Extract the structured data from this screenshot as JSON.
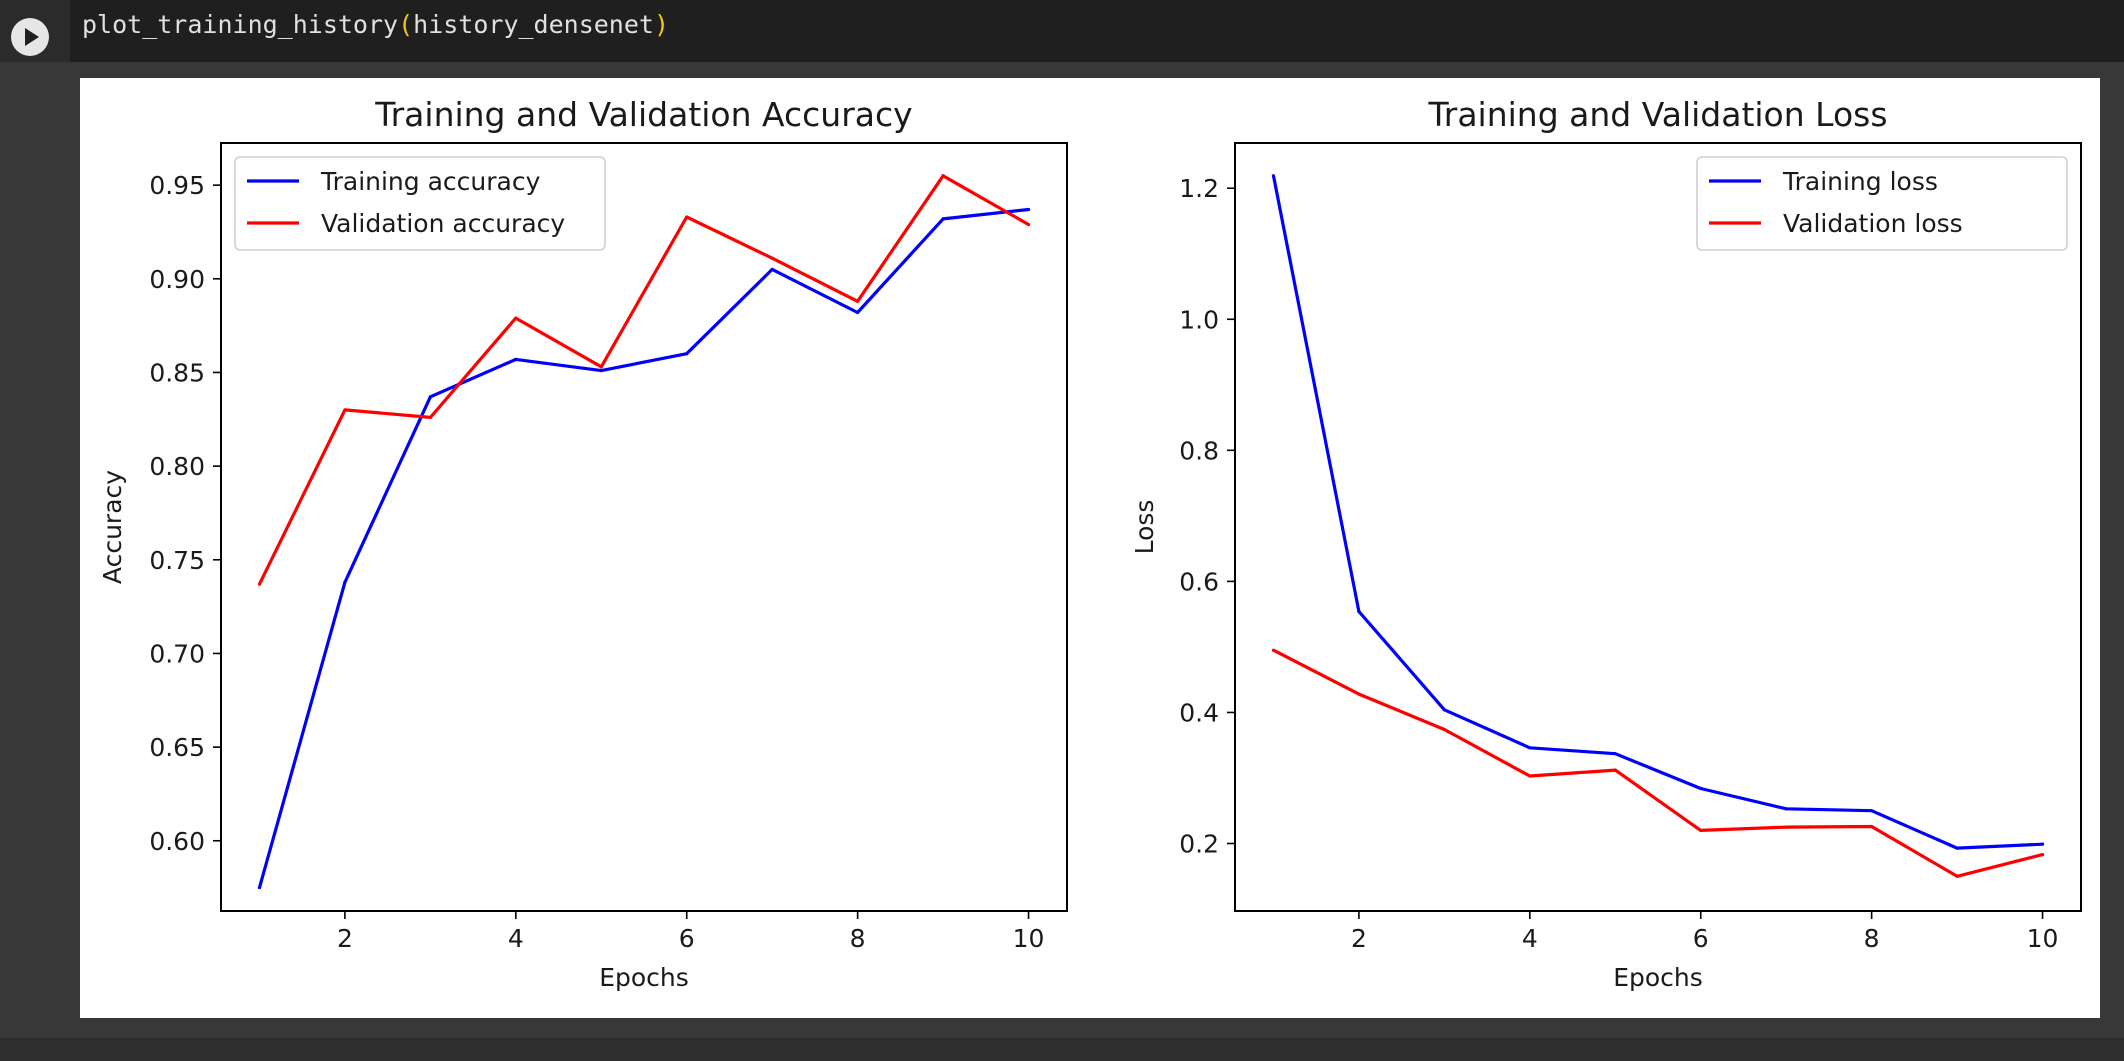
{
  "cell": {
    "code_function": "plot_training_history",
    "code_open": "(",
    "code_arg": "history_densenet",
    "code_close": ")",
    "run_icon": "play-circle-icon"
  },
  "colors": {
    "training": "#0000ff",
    "validation": "#ff0000",
    "editor_bg": "#1f1f1f",
    "paren": "#f0c814"
  },
  "chart_data": [
    {
      "type": "line",
      "title": "Training and Validation Accuracy",
      "xlabel": "Epochs",
      "ylabel": "Accuracy",
      "x": [
        1,
        2,
        3,
        4,
        5,
        6,
        7,
        8,
        9,
        10
      ],
      "xticks": [
        2,
        4,
        6,
        8,
        10
      ],
      "xlim": [
        0.55,
        10.45
      ],
      "yticks": [
        0.6,
        0.65,
        0.7,
        0.75,
        0.8,
        0.85,
        0.9,
        0.95
      ],
      "ylim": [
        0.5625,
        0.9725
      ],
      "legend_position": "upper left",
      "grid": false,
      "series": [
        {
          "name": "Training accuracy",
          "color_key": "training",
          "values": [
            0.575,
            0.738,
            0.837,
            0.857,
            0.851,
            0.86,
            0.905,
            0.882,
            0.932,
            0.937
          ]
        },
        {
          "name": "Validation accuracy",
          "color_key": "validation",
          "values": [
            0.737,
            0.83,
            0.826,
            0.879,
            0.853,
            0.933,
            0.911,
            0.888,
            0.955,
            0.929
          ]
        }
      ]
    },
    {
      "type": "line",
      "title": "Training and Validation Loss",
      "xlabel": "Epochs",
      "ylabel": "Loss",
      "x": [
        1,
        2,
        3,
        4,
        5,
        6,
        7,
        8,
        9,
        10
      ],
      "xticks": [
        2,
        4,
        6,
        8,
        10
      ],
      "xlim": [
        0.55,
        10.45
      ],
      "yticks": [
        0.2,
        0.4,
        0.6,
        0.8,
        1.0,
        1.2
      ],
      "ylim": [
        0.097,
        1.269
      ],
      "legend_position": "upper right",
      "grid": false,
      "series": [
        {
          "name": "Training loss",
          "color_key": "training",
          "values": [
            1.219,
            0.554,
            0.404,
            0.346,
            0.337,
            0.284,
            0.253,
            0.25,
            0.193,
            0.199
          ]
        },
        {
          "name": "Validation loss",
          "color_key": "validation",
          "values": [
            0.495,
            0.428,
            0.374,
            0.303,
            0.312,
            0.22,
            0.225,
            0.226,
            0.15,
            0.183
          ]
        }
      ]
    }
  ]
}
